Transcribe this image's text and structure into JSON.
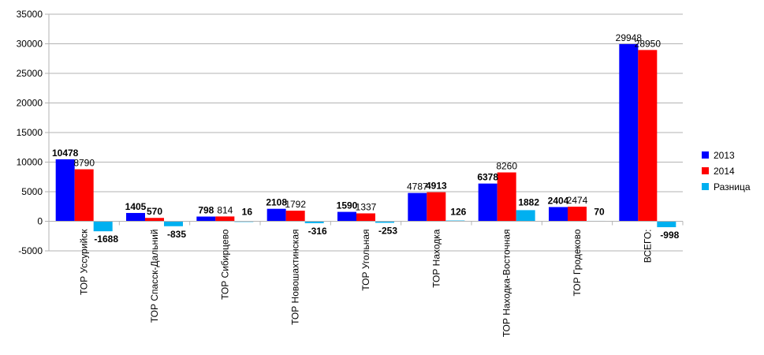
{
  "chart_data": {
    "type": "bar",
    "categories": [
      "ТОР Уссурийск",
      "ТОР Спасск-Дальний",
      "ТОР Сибирцево",
      "ТОР Новошахтинская",
      "ТОР Угольная",
      "ТОР Находка",
      "ТОР Находка-Восточная",
      "ТОР Гродеково",
      "ВСЕГО:"
    ],
    "series": [
      {
        "name": "2013",
        "color": "#0000ff",
        "values": [
          10478,
          1405,
          798,
          2108,
          1590,
          4787,
          6378,
          2404,
          29948
        ],
        "labels": [
          "10478",
          "1405",
          "798",
          "2108",
          "1590",
          "4787",
          "6378",
          "2404",
          "29948"
        ],
        "bold": [
          true,
          true,
          true,
          true,
          true,
          false,
          true,
          true,
          false
        ]
      },
      {
        "name": "2014",
        "color": "#ff0000",
        "values": [
          8790,
          570,
          814,
          1792,
          1337,
          4913,
          8260,
          2474,
          28950
        ],
        "labels": [
          "8790",
          "570",
          "814",
          "1792",
          "1337",
          "4913",
          "8260",
          "2474",
          "28950"
        ],
        "bold": [
          false,
          true,
          false,
          false,
          false,
          true,
          false,
          false,
          false
        ]
      },
      {
        "name": "Разница",
        "color": "#00b0f0",
        "values": [
          -1688,
          -835,
          16,
          -316,
          -253,
          126,
          1882,
          70,
          -998
        ],
        "labels": [
          "-1688",
          "-835",
          "16",
          "-316",
          "-253",
          "126",
          "1882",
          "70",
          "-998"
        ],
        "bold": [
          true,
          true,
          true,
          true,
          true,
          true,
          true,
          true,
          true
        ]
      }
    ],
    "ylim": [
      -5000,
      35000
    ],
    "yticks": [
      -5000,
      0,
      5000,
      10000,
      15000,
      20000,
      25000,
      30000,
      35000
    ],
    "title": "",
    "xlabel": "",
    "ylabel": "",
    "grid": true,
    "legend": "right"
  }
}
